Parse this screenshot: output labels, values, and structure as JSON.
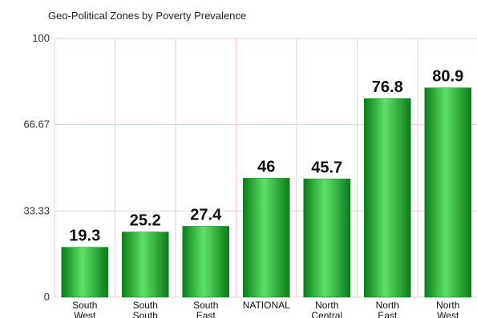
{
  "chart_data": {
    "type": "bar",
    "title": "Geo-Political Zones by Poverty Prevalence",
    "categories": [
      [
        "South",
        "West"
      ],
      [
        "South",
        "South"
      ],
      [
        "South",
        "East"
      ],
      [
        "NATIONAL"
      ],
      [
        "North",
        "Central"
      ],
      [
        "North",
        "East"
      ],
      [
        "North",
        "West"
      ]
    ],
    "values": [
      19.3,
      25.2,
      27.4,
      46,
      45.7,
      76.8,
      80.9
    ],
    "data_labels": [
      "19.3",
      "25.2",
      "27.4",
      "46",
      "45.7",
      "76.8",
      "80.9"
    ],
    "yticks": [
      "0",
      "33.33",
      "66.67",
      "100"
    ],
    "ytick_values": [
      0,
      33.33,
      66.67,
      100
    ],
    "ylim": [
      0,
      100
    ],
    "grid": true,
    "bar_color": "#1bb52b",
    "bar_color_dark": "#0a7d18",
    "bar_color_light": "#5fe06a",
    "grid_color": "#f2c9d2"
  }
}
